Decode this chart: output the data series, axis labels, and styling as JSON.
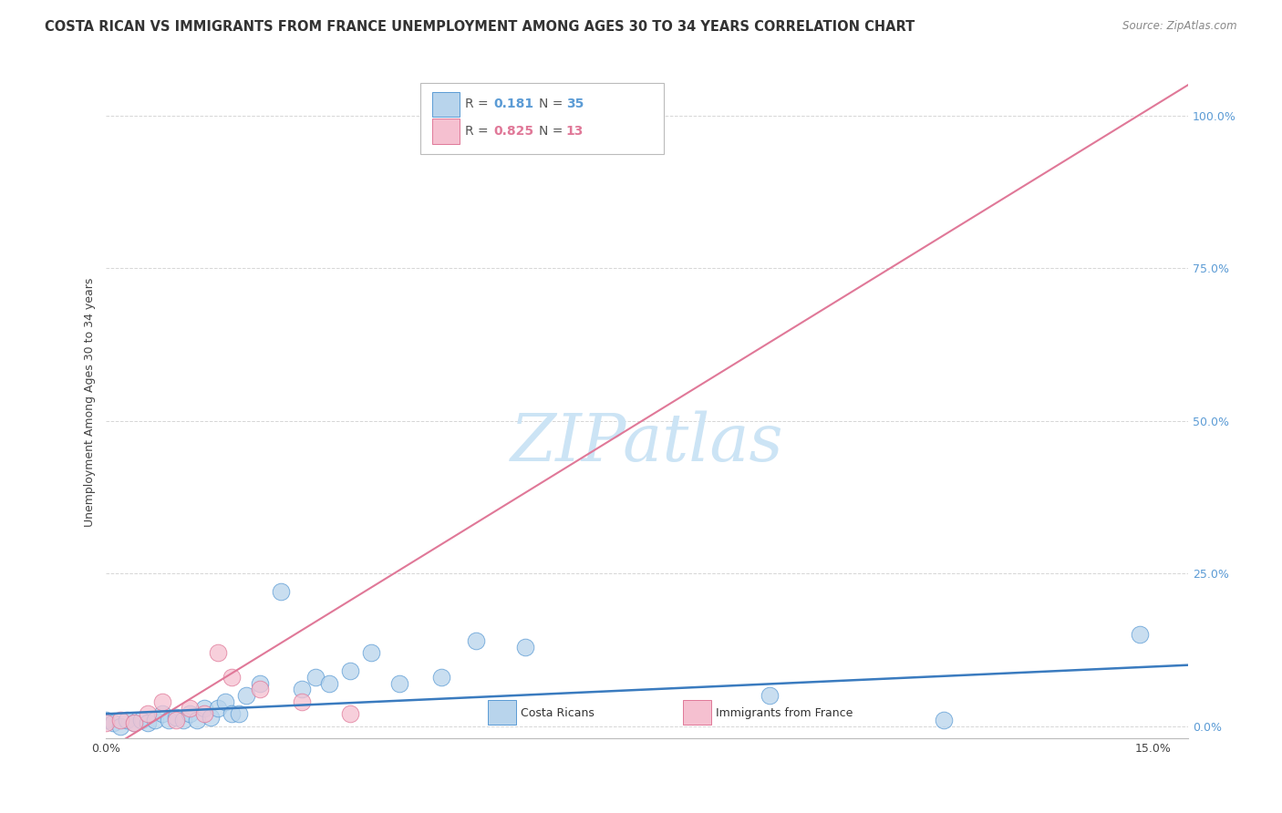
{
  "title": "COSTA RICAN VS IMMIGRANTS FROM FRANCE UNEMPLOYMENT AMONG AGES 30 TO 34 YEARS CORRELATION CHART",
  "source": "Source: ZipAtlas.com",
  "ylabel": "Unemployment Among Ages 30 to 34 years",
  "ytick_labels": [
    "0.0%",
    "25.0%",
    "50.0%",
    "75.0%",
    "100.0%"
  ],
  "ytick_vals": [
    0.0,
    0.25,
    0.5,
    0.75,
    1.0
  ],
  "xlim": [
    0.0,
    0.155
  ],
  "ylim": [
    -0.02,
    1.08
  ],
  "color_blue_fill": "#b8d4ec",
  "color_blue_edge": "#5b9bd5",
  "color_blue_line": "#3a7bbf",
  "color_pink_fill": "#f5c0d0",
  "color_pink_edge": "#e07898",
  "color_pink_line": "#e07898",
  "color_r_blue": "#5b9bd5",
  "color_r_pink": "#e07898",
  "watermark_color": "#cce4f5",
  "grid_color": "#cccccc",
  "bg_color": "#ffffff",
  "title_fontsize": 10.5,
  "source_fontsize": 8.5,
  "ytick_fontsize": 9,
  "ylabel_fontsize": 9,
  "legend_fontsize": 10,
  "watermark_fontsize": 52,
  "costa_rican_x": [
    0.0,
    0.001,
    0.002,
    0.003,
    0.004,
    0.005,
    0.006,
    0.007,
    0.008,
    0.009,
    0.01,
    0.011,
    0.012,
    0.013,
    0.014,
    0.015,
    0.016,
    0.017,
    0.018,
    0.019,
    0.02,
    0.022,
    0.025,
    0.028,
    0.03,
    0.032,
    0.035,
    0.038,
    0.042,
    0.048,
    0.053,
    0.06,
    0.095,
    0.12,
    0.148
  ],
  "costa_rican_y": [
    0.01,
    0.005,
    0.0,
    0.01,
    0.005,
    0.01,
    0.005,
    0.01,
    0.02,
    0.01,
    0.015,
    0.01,
    0.02,
    0.01,
    0.03,
    0.015,
    0.03,
    0.04,
    0.02,
    0.02,
    0.05,
    0.07,
    0.22,
    0.06,
    0.08,
    0.07,
    0.09,
    0.12,
    0.07,
    0.08,
    0.14,
    0.13,
    0.05,
    0.01,
    0.15
  ],
  "france_x": [
    0.0,
    0.002,
    0.004,
    0.006,
    0.008,
    0.01,
    0.012,
    0.014,
    0.016,
    0.018,
    0.022,
    0.028,
    0.035
  ],
  "france_y": [
    0.005,
    0.01,
    0.005,
    0.02,
    0.04,
    0.01,
    0.03,
    0.02,
    0.12,
    0.08,
    0.06,
    0.04,
    0.02
  ],
  "fr_line_x0": 0.0,
  "fr_line_x1": 0.155,
  "fr_line_y0": -0.04,
  "fr_line_y1": 1.05,
  "cr_line_x0": 0.0,
  "cr_line_x1": 0.155,
  "cr_line_y0": 0.02,
  "cr_line_y1": 0.1
}
